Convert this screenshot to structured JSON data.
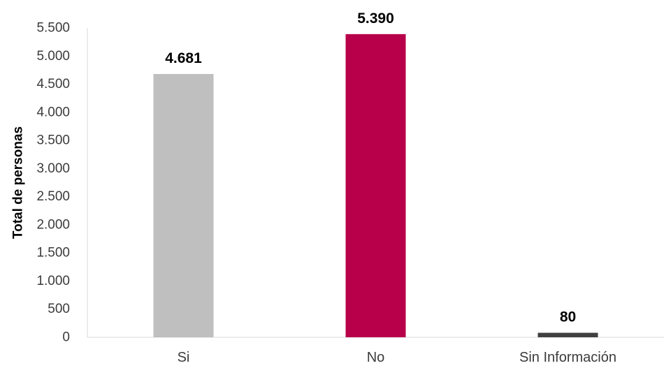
{
  "chart_data": {
    "type": "bar",
    "title": "",
    "xlabel": "",
    "ylabel": "Total de personas",
    "categories": [
      "Si",
      "No",
      "Sin Información"
    ],
    "values": [
      4681,
      5390,
      80
    ],
    "value_labels": [
      "4.681",
      "5.390",
      "80"
    ],
    "colors": [
      "#bfbfbf",
      "#b8004a",
      "#404040"
    ],
    "ylim": [
      0,
      5500
    ],
    "yticks": [
      0,
      500,
      1000,
      1500,
      2000,
      2500,
      3000,
      3500,
      4000,
      4500,
      5000,
      5500
    ],
    "ytick_labels": [
      "0",
      "500",
      "1.000",
      "1.500",
      "2.000",
      "2.500",
      "3.000",
      "3.500",
      "4.000",
      "4.500",
      "5.000",
      "5.500"
    ],
    "grid": false,
    "legend": "none"
  }
}
